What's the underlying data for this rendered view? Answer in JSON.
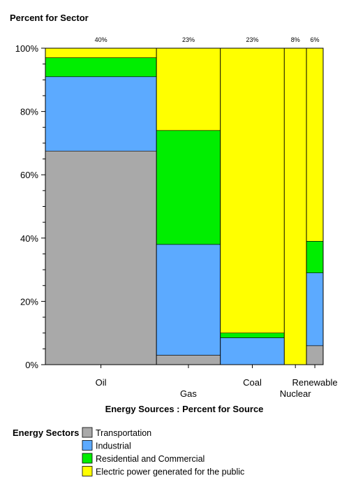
{
  "chart_data": {
    "type": "mosaic",
    "y_title": "Percent for Sector",
    "x_title": "Energy Sources : Percent for Source",
    "y_ticks": [
      "0%",
      "20%",
      "40%",
      "60%",
      "80%",
      "100%"
    ],
    "categories": [
      "Oil",
      "Gas",
      "Coal",
      "Nuclear",
      "Renewable"
    ],
    "source_percent": [
      40,
      23,
      23,
      8,
      6
    ],
    "source_percent_labels": [
      "40%",
      "23%",
      "23%",
      "8%",
      "6%"
    ],
    "sectors": [
      {
        "name": "Transportation",
        "color": "#a9a9a9",
        "values": [
          67.5,
          3,
          0,
          0,
          6
        ]
      },
      {
        "name": "Industrial",
        "color": "#5caaff",
        "values": [
          23.5,
          35,
          8.5,
          0,
          23
        ]
      },
      {
        "name": "Residential and Commercial",
        "color": "#00ee00",
        "values": [
          6,
          36,
          1.5,
          0,
          10
        ]
      },
      {
        "name": "Electric power generated for the public",
        "color": "#ffff00",
        "values": [
          3,
          26,
          90,
          100,
          61
        ]
      }
    ],
    "ylim": [
      0,
      100
    ]
  },
  "legend": {
    "title": "Energy Sectors"
  }
}
